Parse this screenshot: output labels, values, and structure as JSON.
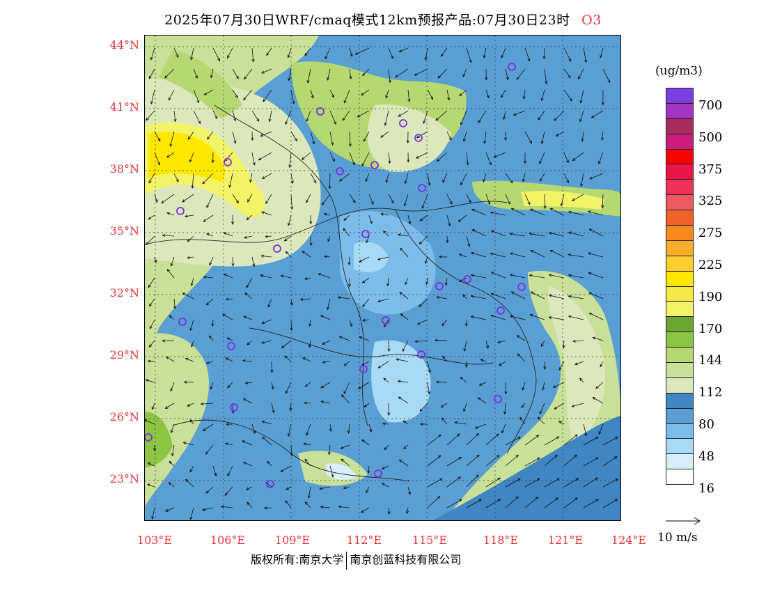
{
  "title": {
    "main": "2025年07月30日WRF/cmaq模式12km预报产品:07月30日23时",
    "species": "O3"
  },
  "axes": {
    "latitudes": [
      "44°N",
      "41°N",
      "38°N",
      "35°N",
      "32°N",
      "29°N",
      "26°N",
      "23°N"
    ],
    "longitudes": [
      "103°E",
      "106°E",
      "109°E",
      "112°E",
      "115°E",
      "118°E",
      "121°E",
      "124°E"
    ]
  },
  "colorbar": {
    "units": "(ug/m3)",
    "colors": [
      "#ffffff",
      "#d8eef9",
      "#a9daf5",
      "#7bbde8",
      "#5a9fd4",
      "#3f86c2",
      "#dce8bc",
      "#c9e098",
      "#b5d872",
      "#8cc543",
      "#6aa633",
      "#f3f368",
      "#f7e84a",
      "#fee800",
      "#fbce2b",
      "#f9ae2a",
      "#f6891f",
      "#f0622a",
      "#ee5a5f",
      "#f03258",
      "#ea154b",
      "#fd0000",
      "#cc1d7d",
      "#a82d5c",
      "#a334c4",
      "#7b3fe0"
    ],
    "labels": [
      "16",
      "48",
      "80",
      "112",
      "144",
      "170",
      "190",
      "225",
      "275",
      "325",
      "375",
      "500",
      "700"
    ]
  },
  "vector_reference": "10 m/s",
  "footer": {
    "left": "版权所有:南京大学",
    "right": "南京创蓝科技有限公司"
  }
}
